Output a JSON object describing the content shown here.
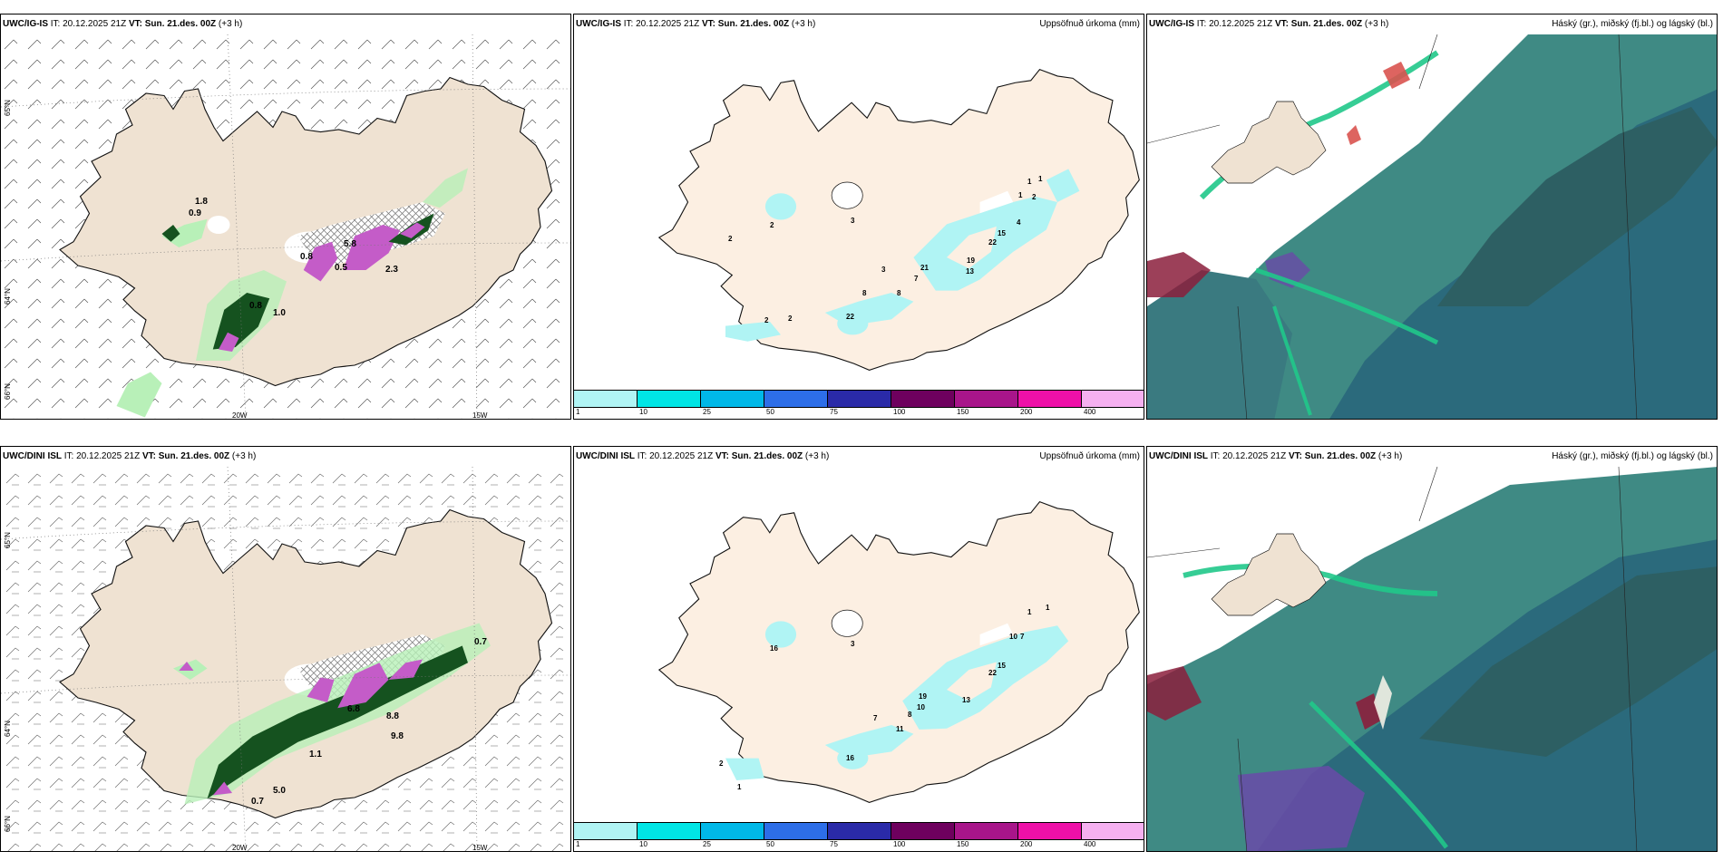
{
  "common": {
    "init_label": "IT:",
    "init_time": "20.12.2025 21Z",
    "valid_label": "VT:",
    "valid_time": "Sun. 21.des. 00Z",
    "lead": "(+3 h)"
  },
  "rows": [
    {
      "model": "UWC/IG-IS"
    },
    {
      "model": "UWC/DINI ISL"
    }
  ],
  "panels": {
    "precip_title": "Uppsöfnuð úrkoma (mm)",
    "clouds_title": "Háský (gr.), miðský (fj.bl.) og lágský (bl.)"
  },
  "grid_labels": {
    "lat_66": "66°N",
    "lat_64": "64°N",
    "lat_65": "65°N",
    "lon_20": "20W",
    "lon_15": "15W"
  },
  "precip_legend": {
    "labels": [
      "1",
      "10",
      "25",
      "50",
      "75",
      "100",
      "150",
      "200",
      "400"
    ],
    "colors": [
      "#b0f4f4",
      "#00e5e5",
      "#00b8e8",
      "#2d6ee8",
      "#2a2aa8",
      "#6e005e",
      "#a8158a",
      "#ee10a8",
      "#f5b0f0"
    ]
  },
  "colors": {
    "land": "#efe2d2",
    "land_precip": "#fcefe2",
    "ice_white": "#ffffff",
    "light_green": "#b8f0b8",
    "dark_green": "#15521f",
    "magenta": "#c45cc8",
    "cloud_teal": "#3f8a84",
    "cloud_dark": "#2d5f63",
    "cloud_blue": "#2b6a7c",
    "cloud_bright": "#20c88a",
    "cloud_red": "#8b1e3c",
    "cloud_purple": "#6a4aa8"
  },
  "map1_labels": {
    "a": "1.8",
    "b": "0.9",
    "c": "0.8",
    "d": "0.5",
    "e": "0.8",
    "f": "5.8",
    "g": "2.3",
    "h": "1.0"
  },
  "map2_labels_top": [
    "2",
    "3",
    "2",
    "1",
    "1",
    "1",
    "2",
    "4",
    "22",
    "15",
    "21",
    "3",
    "7",
    "8",
    "8",
    "19",
    "13",
    "2",
    "2",
    "22"
  ],
  "map2_labels_bottom": [
    "16",
    "3",
    "1",
    "1",
    "10",
    "7",
    "22",
    "15",
    "19",
    "10",
    "8",
    "7",
    "11",
    "13",
    "2",
    "1",
    "16"
  ],
  "map3_labels": {
    "a": "0.7",
    "b": "5.0",
    "c": "6.8",
    "d": "8.8",
    "e": "0.7",
    "f": "9.8",
    "g": "1.1"
  }
}
